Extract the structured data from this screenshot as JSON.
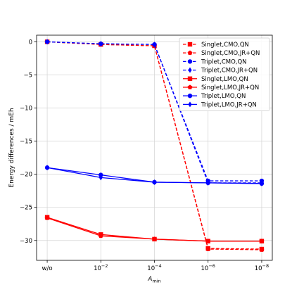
{
  "chart_data": {
    "type": "line",
    "title": "",
    "xlabel_main": "A",
    "xlabel_sub": "min",
    "ylabel": "Energy differences / mEh",
    "categories": [
      {
        "base": "w/o",
        "exp": ""
      },
      {
        "base": "10",
        "exp": "−2"
      },
      {
        "base": "10",
        "exp": "−4"
      },
      {
        "base": "10",
        "exp": "−6"
      },
      {
        "base": "10",
        "exp": "−8"
      }
    ],
    "ylim": [
      -33,
      1
    ],
    "yticks": [
      0,
      -5,
      -10,
      -15,
      -20,
      -25,
      -30
    ],
    "ytick_labels": [
      "0",
      "−5",
      "−10",
      "−15",
      "−20",
      "−25",
      "−30"
    ],
    "grid": true,
    "legend_position": "top-right",
    "colors": {
      "singlet": "#ff0000",
      "triplet": "#0000ff"
    },
    "series": [
      {
        "name": "Singlet,CMO,QN",
        "color": "#ff0000",
        "dash": true,
        "marker": "square",
        "values": [
          0,
          -0.4,
          -0.6,
          -31.2,
          -31.3
        ]
      },
      {
        "name": "Singlet,CMO,JR+QN",
        "color": "#ff0000",
        "dash": true,
        "marker": "pentagon",
        "values": [
          0,
          -0.4,
          -0.6,
          -31.3,
          -31.4
        ]
      },
      {
        "name": "Triplet,CMO,QN",
        "color": "#0000ff",
        "dash": true,
        "marker": "circle",
        "values": [
          0,
          -0.3,
          -0.4,
          -21.0,
          -21.0
        ]
      },
      {
        "name": "Triplet,CMO,JR+QN",
        "color": "#0000ff",
        "dash": true,
        "marker": "thin_diamond",
        "values": [
          0,
          -0.3,
          -0.4,
          -21.3,
          -21.3
        ]
      },
      {
        "name": "Singlet,LMO,QN",
        "color": "#ff0000",
        "dash": false,
        "marker": "square",
        "values": [
          -26.5,
          -29.1,
          -29.8,
          -30.1,
          -30.1
        ]
      },
      {
        "name": "Singlet,LMO,JR+QN",
        "color": "#ff0000",
        "dash": false,
        "marker": "pentagon",
        "values": [
          -26.6,
          -29.3,
          -29.8,
          -30.1,
          -30.1
        ]
      },
      {
        "name": "Triplet,LMO,QN",
        "color": "#0000ff",
        "dash": false,
        "marker": "circle",
        "values": [
          -19.0,
          -20.1,
          -21.2,
          -21.3,
          -21.4
        ]
      },
      {
        "name": "Triplet,LMO,JR+QN",
        "color": "#0000ff",
        "dash": false,
        "marker": "thin_diamond",
        "values": [
          -19.0,
          -20.5,
          -21.2,
          -21.3,
          -21.4
        ]
      }
    ]
  }
}
